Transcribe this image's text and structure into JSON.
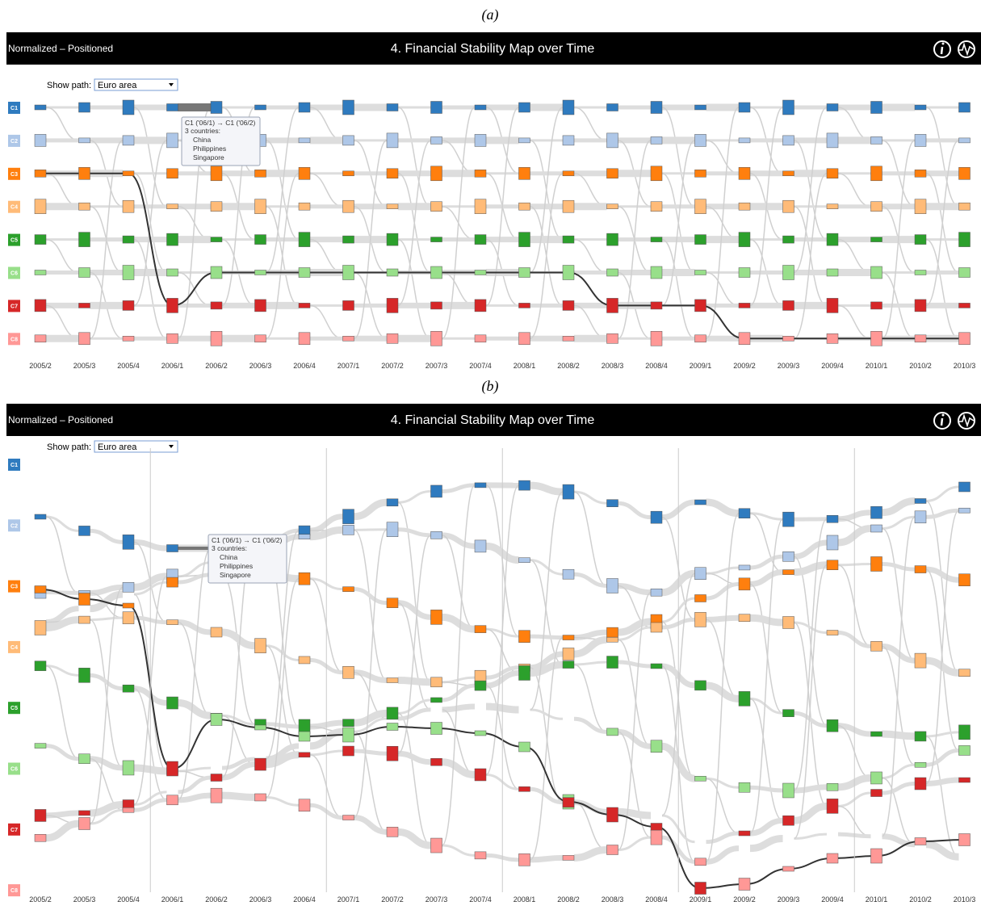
{
  "panels": [
    {
      "label": "(a)",
      "header": {
        "left": "Normalized – Positioned",
        "title": "4. Financial Stability Map over Time"
      },
      "show_path": {
        "label": "Show path:",
        "selected": "Euro area"
      },
      "tooltip": {
        "title": "C1 ('06/1) → C1 ('06/2)",
        "count": "3 countries:",
        "items": [
          "China",
          "Philippines",
          "Singapore"
        ]
      }
    },
    {
      "label": "(b)",
      "header": {
        "left": "Normalized – Positioned",
        "title": "4. Financial Stability Map over Time"
      },
      "show_path": {
        "label": "Show path:",
        "selected": "Euro area"
      },
      "tooltip": {
        "title": "C1 ('06/1) → C1 ('06/2)",
        "count": "3 countries:",
        "items": [
          "China",
          "Philippines",
          "Singapore"
        ]
      }
    }
  ],
  "clusters": [
    {
      "label": "C1",
      "color": "#2f7bbf"
    },
    {
      "label": "C2",
      "color": "#aec7e8"
    },
    {
      "label": "C3",
      "color": "#ff7f0e"
    },
    {
      "label": "C4",
      "color": "#ffbb78"
    },
    {
      "label": "C5",
      "color": "#2ca02c"
    },
    {
      "label": "C6",
      "color": "#98df8a"
    },
    {
      "label": "C7",
      "color": "#d62728"
    },
    {
      "label": "C8",
      "color": "#ff9896"
    }
  ],
  "periods": [
    "2005/2",
    "2005/3",
    "2005/4",
    "2006/1",
    "2006/2",
    "2006/3",
    "2006/4",
    "2007/1",
    "2007/2",
    "2007/3",
    "2007/4",
    "2008/1",
    "2008/2",
    "2008/3",
    "2008/4",
    "2009/1",
    "2009/2",
    "2009/3",
    "2009/4",
    "2010/1",
    "2010/2",
    "2010/3"
  ]
}
